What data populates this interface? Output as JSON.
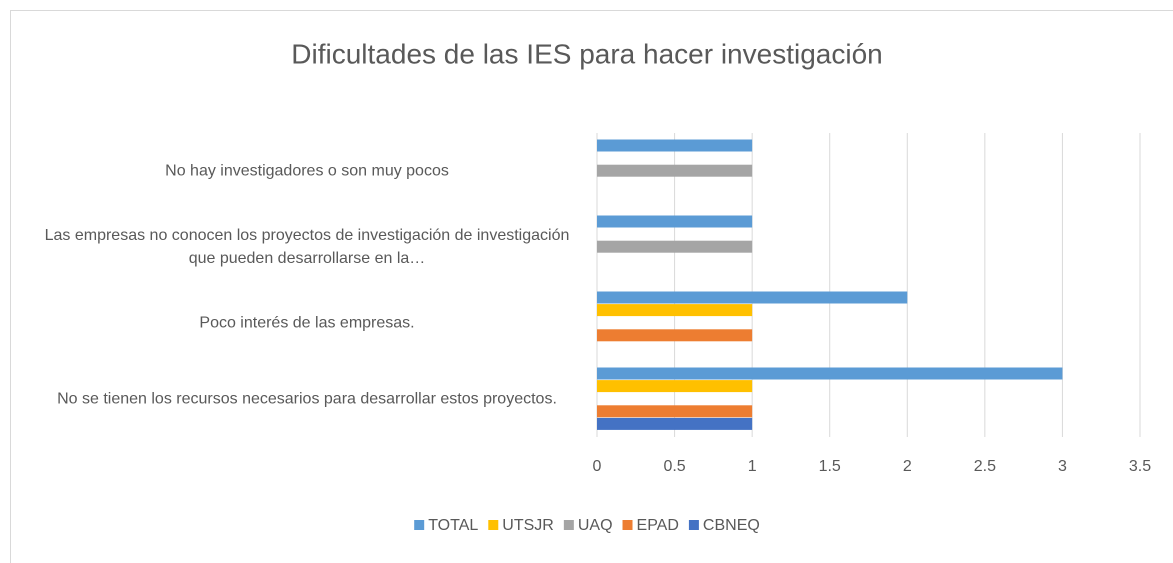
{
  "chart_data": {
    "type": "hbar",
    "title": "Dificultades de las IES para hacer investigación",
    "categories": [
      "No hay investigadores o son muy pocos",
      "Las empresas no conocen los proyectos de investigación de investigación que pueden desarrollarse en la…",
      "Poco interés de las empresas.",
      "No se tienen los recursos necesarios para desarrollar estos proyectos."
    ],
    "series": [
      {
        "name": "TOTAL",
        "color": "#5b9bd5",
        "values": [
          1,
          1,
          2,
          3
        ]
      },
      {
        "name": "UTSJR",
        "color": "#ffc000",
        "values": [
          null,
          null,
          1,
          1
        ]
      },
      {
        "name": "UAQ",
        "color": "#a5a5a5",
        "values": [
          1,
          1,
          null,
          null
        ]
      },
      {
        "name": "EPAD",
        "color": "#ed7d31",
        "values": [
          null,
          null,
          1,
          1
        ]
      },
      {
        "name": "CBNEQ",
        "color": "#4472c4",
        "values": [
          null,
          null,
          null,
          1
        ]
      }
    ],
    "xlim": [
      0,
      3.5
    ],
    "xticks": [
      0,
      0.5,
      1,
      1.5,
      2,
      2.5,
      3,
      3.5
    ],
    "grid": true,
    "legend": "bottom"
  }
}
